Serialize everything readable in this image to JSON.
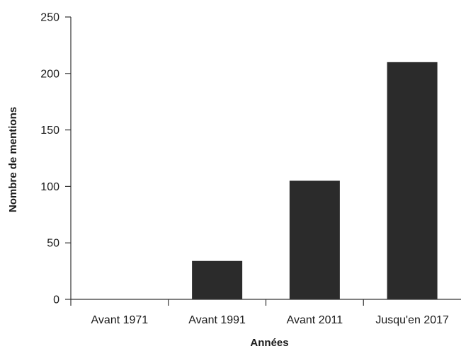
{
  "chart_data": {
    "type": "bar",
    "title": "",
    "xlabel": "Années",
    "ylabel": "Nombre de mentions",
    "categories": [
      "Avant 1971",
      "Avant 1991",
      "Avant 2011",
      "Jusqu'en 2017"
    ],
    "values": [
      0,
      34,
      105,
      210
    ],
    "ylim": [
      0,
      250
    ],
    "yticks": [
      0,
      50,
      100,
      150,
      200,
      250
    ],
    "grid": false,
    "legend": "none",
    "bar_color": "#2b2b2b"
  }
}
